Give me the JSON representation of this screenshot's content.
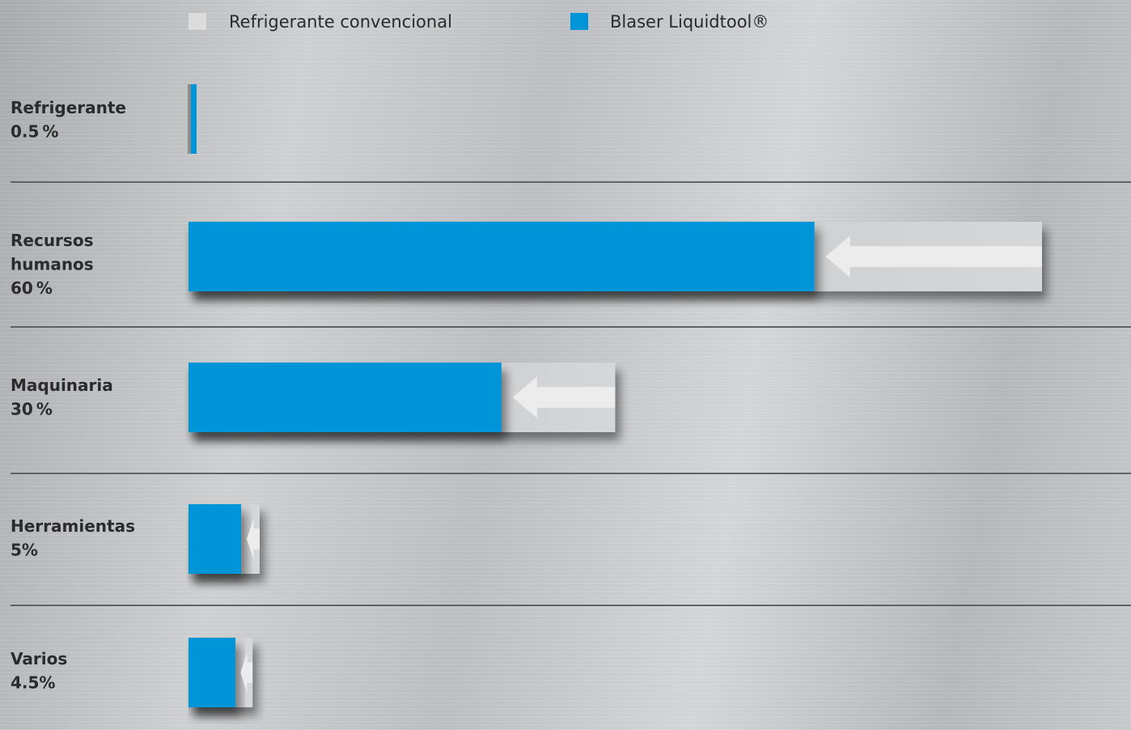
{
  "chart_data": {
    "type": "bar",
    "orientation": "horizontal",
    "legend": [
      {
        "name": "Refrigerante convencional",
        "color": "#dcdcdc"
      },
      {
        "name": "Blaser Liquidtool®",
        "color": "#0094d9"
      }
    ],
    "legend_placement": "top",
    "categories": [
      {
        "label": "Refrigerante",
        "pct": "0.5 %"
      },
      {
        "label": "Recursos\nhumanos",
        "pct": "60 %"
      },
      {
        "label": "Maquinaria",
        "pct": "30 %"
      },
      {
        "label": "Herramientas",
        "pct": "5%"
      },
      {
        "label": "Varios",
        "pct": "4.5%"
      }
    ],
    "series": [
      {
        "name": "Refrigerante convencional",
        "values": [
          0.5,
          60,
          30,
          5,
          4.5
        ]
      },
      {
        "name": "Blaser Liquidtool®",
        "values": [
          0.5,
          44,
          22,
          3.7,
          3.3
        ]
      }
    ],
    "grid": false
  }
}
